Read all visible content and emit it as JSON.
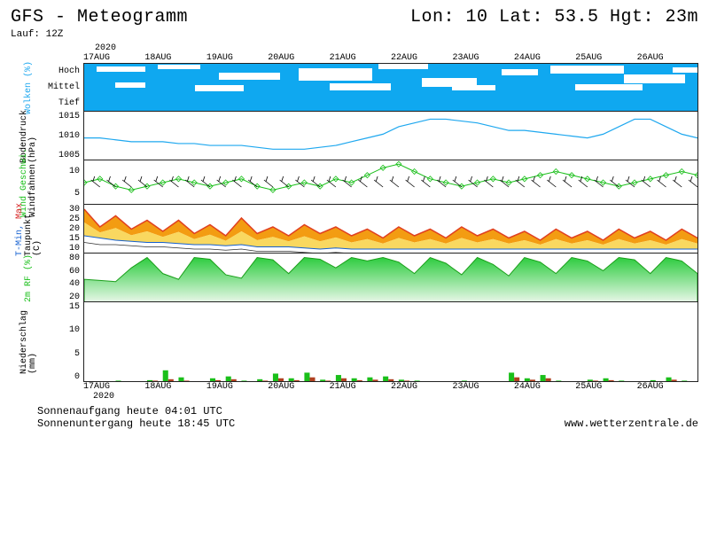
{
  "header": {
    "title_left": "GFS - Meteogramm",
    "title_right": "Lon: 10 Lat: 53.5 Hgt: 23m",
    "run": "Lauf: 12Z",
    "year": "2020"
  },
  "dates": [
    "17AUG",
    "18AUG",
    "19AUG",
    "20AUG",
    "21AUG",
    "22AUG",
    "23AUG",
    "24AUG",
    "25AUG",
    "26AUG"
  ],
  "panel_clouds": {
    "ylabel": "Wolken (%)",
    "levels": [
      "Hoch",
      "Mittel",
      "Tief"
    ],
    "height": 55,
    "bg_color": "#0fa8f0",
    "blob_color": "#ffffff",
    "blobs": [
      [
        2,
        5,
        8,
        6
      ],
      [
        12,
        2,
        7,
        5
      ],
      [
        22,
        18,
        10,
        8
      ],
      [
        35,
        10,
        12,
        14
      ],
      [
        48,
        0,
        8,
        6
      ],
      [
        55,
        30,
        9,
        10
      ],
      [
        68,
        12,
        6,
        7
      ],
      [
        76,
        4,
        12,
        9
      ],
      [
        88,
        22,
        10,
        10
      ],
      [
        96,
        8,
        5,
        6
      ],
      [
        5,
        40,
        5,
        6
      ],
      [
        18,
        45,
        8,
        7
      ],
      [
        40,
        42,
        10,
        8
      ],
      [
        60,
        46,
        7,
        6
      ],
      [
        80,
        44,
        11,
        7
      ]
    ]
  },
  "panel_pressure": {
    "ylabel1": "Bodendruck",
    "ylabel2": "(hPa)",
    "height": 55,
    "ymin": 1005,
    "ymax": 1018,
    "ticks": [
      1005,
      1010,
      1015
    ],
    "line_color": "#1fa8ef",
    "data": [
      1011,
      1011,
      1010.5,
      1010,
      1010,
      1010,
      1009.5,
      1009.5,
      1009,
      1009,
      1009,
      1008.5,
      1008,
      1008,
      1008,
      1008.5,
      1009,
      1010,
      1011,
      1012,
      1014,
      1015,
      1016,
      1016,
      1015.5,
      1015,
      1014,
      1013,
      1013,
      1012.5,
      1012,
      1011.5,
      1011,
      1012,
      1014,
      1016,
      1016,
      1014,
      1012,
      1011
    ]
  },
  "panel_wind": {
    "ylabel1": "Wind Geschwi.",
    "ylabel1_color": "#1abf1a",
    "ylabel2": "Windfahnen",
    "height": 50,
    "ymin": 0,
    "ymax": 12,
    "ticks": [
      5,
      10
    ],
    "line_color": "#1abf1a",
    "marker_color": "#1abf1a",
    "barb_color": "#000000",
    "data": [
      6,
      7,
      5,
      4,
      5,
      6,
      7,
      6,
      5,
      6,
      7,
      5,
      4,
      5,
      6,
      5,
      7,
      6,
      8,
      10,
      11,
      9,
      7,
      6,
      5,
      6,
      7,
      6,
      7,
      8,
      9,
      8,
      7,
      6,
      5,
      6,
      7,
      8,
      9,
      8
    ]
  },
  "panel_temp": {
    "ylabel1": "T-Min,",
    "ylabel1_color": "#1560d0",
    "ylabel2": "Max",
    "ylabel2_color": "#d62020",
    "ylabel3": "Taupunkt",
    "height": 55,
    "ymin": 10,
    "ymax": 32,
    "ticks": [
      10,
      15,
      20,
      25,
      30
    ],
    "unit": "(C)",
    "max_color": "#e04020",
    "fill_high": "#f39c12",
    "fill_low": "#f9d860",
    "min_color": "#1560d0",
    "dew_color": "#303030",
    "tmax": [
      30,
      22,
      27,
      21,
      25,
      20,
      25,
      19,
      23,
      18,
      26,
      19,
      22,
      18,
      23,
      19,
      22,
      18,
      21,
      17,
      22,
      18,
      21,
      17,
      22,
      18,
      21,
      17,
      20,
      16,
      21,
      17,
      20,
      16,
      21,
      17,
      20,
      16,
      21,
      17
    ],
    "tmin": [
      18,
      17,
      16,
      15.5,
      15,
      15,
      14.5,
      14,
      14,
      13.5,
      14,
      13,
      13,
      13,
      12.5,
      12,
      12.5,
      12,
      12,
      12,
      12,
      12,
      12,
      12,
      12,
      12,
      12,
      12,
      12,
      12,
      12,
      12,
      12,
      12,
      12,
      12,
      12,
      12,
      12,
      12
    ],
    "tdew": [
      15,
      14,
      14,
      13.5,
      13,
      13,
      12.5,
      12,
      12,
      11.5,
      12,
      11,
      11,
      11,
      10.5,
      10,
      10.5,
      10,
      10,
      10,
      10,
      10,
      10,
      10,
      10,
      10,
      10,
      10,
      10,
      10,
      10,
      10,
      10,
      10,
      10,
      10,
      10,
      10,
      10,
      10
    ]
  },
  "panel_rh": {
    "ylabel": "2m RF (%)",
    "ylabel_color": "#1abf1a",
    "height": 55,
    "ymin": 10,
    "ymax": 95,
    "ticks": [
      20,
      40,
      60,
      80
    ],
    "fill_color": "#2ecc40",
    "fill_color2": "#a3e0a3",
    "data": [
      50,
      48,
      46,
      70,
      88,
      60,
      50,
      88,
      85,
      58,
      52,
      88,
      84,
      60,
      88,
      85,
      70,
      88,
      82,
      88,
      80,
      60,
      88,
      78,
      58,
      88,
      76,
      56,
      88,
      80,
      60,
      88,
      82,
      65,
      88,
      84,
      60,
      88,
      82,
      60
    ]
  },
  "panel_precip": {
    "ylabel1": "Niederschlag",
    "ylabel2": "(mm)",
    "height": 90,
    "ymin": 0,
    "ymax": 17,
    "ticks": [
      0,
      5,
      10,
      15
    ],
    "bar_colors": [
      "#1abf1a",
      "#b04020"
    ],
    "data": [
      [
        0,
        0
      ],
      [
        0,
        0
      ],
      [
        0.3,
        0
      ],
      [
        0,
        0
      ],
      [
        0.4,
        0.3
      ],
      [
        2.5,
        0.6
      ],
      [
        1.0,
        0.3
      ],
      [
        0,
        0
      ],
      [
        0.8,
        0.4
      ],
      [
        1.2,
        0.6
      ],
      [
        0.3,
        0
      ],
      [
        0.6,
        0.3
      ],
      [
        1.8,
        0.8
      ],
      [
        0.8,
        0.4
      ],
      [
        2.0,
        1.0
      ],
      [
        0.5,
        0.3
      ],
      [
        1.5,
        0.8
      ],
      [
        0.8,
        0.4
      ],
      [
        1.0,
        0.5
      ],
      [
        1.2,
        0.6
      ],
      [
        0.5,
        0.3
      ],
      [
        0.3,
        0
      ],
      [
        0,
        0
      ],
      [
        0,
        0
      ],
      [
        0.3,
        0
      ],
      [
        0,
        0
      ],
      [
        0,
        0
      ],
      [
        2.0,
        1.0
      ],
      [
        0.8,
        0.5
      ],
      [
        1.5,
        0.8
      ],
      [
        0.3,
        0
      ],
      [
        0,
        0
      ],
      [
        0.5,
        0.3
      ],
      [
        0.8,
        0.4
      ],
      [
        0.3,
        0
      ],
      [
        0,
        0
      ],
      [
        0.4,
        0
      ],
      [
        1.0,
        0.5
      ],
      [
        0.3,
        0
      ],
      [
        0,
        0
      ]
    ]
  },
  "footer": {
    "sunrise": "Sonnenaufgang heute 04:01 UTC",
    "sunset": "Sonnenuntergang heute 18:45 UTC",
    "site": "www.wetterzentrale.de",
    "bottom_year": "2020"
  }
}
